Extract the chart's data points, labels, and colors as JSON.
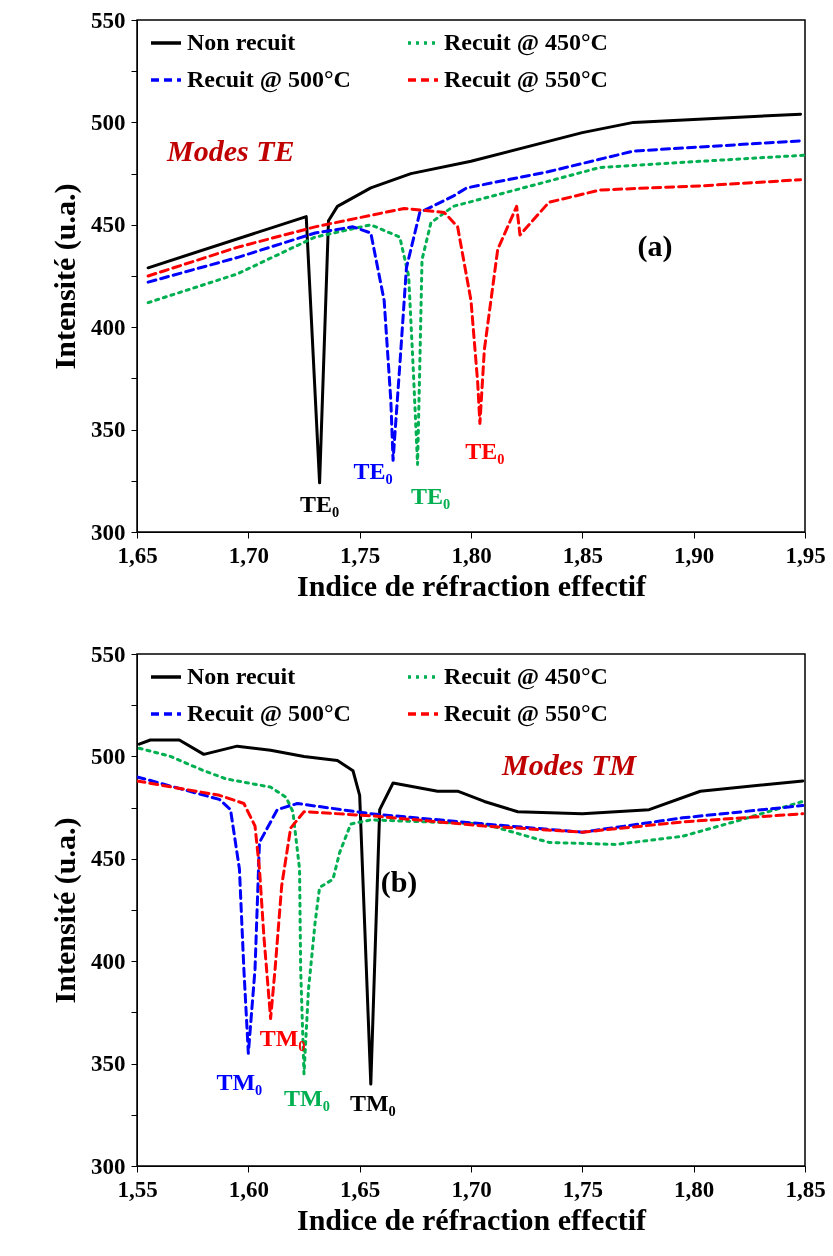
{
  "chart_data": [
    {
      "type": "line",
      "xlabel": "Indice de réfraction effectif",
      "ylabel": "Intensité (u.a.)",
      "legend": "top",
      "grid": false,
      "marker": "none",
      "xlim": [
        1.65,
        1.95
      ],
      "xticks": [
        {
          "value": 1.65,
          "label": "1,65"
        },
        {
          "value": 1.7,
          "label": "1,70"
        },
        {
          "value": 1.75,
          "label": "1,75"
        },
        {
          "value": 1.8,
          "label": "1,80"
        },
        {
          "value": 1.85,
          "label": "1,85"
        },
        {
          "value": 1.9,
          "label": "1,90"
        },
        {
          "value": 1.95,
          "label": "1,95"
        }
      ],
      "ylim": [
        300,
        550
      ],
      "yticks": [
        300,
        {
          "value": 325,
          "label": null
        },
        350,
        {
          "value": 375,
          "label": null
        },
        400,
        {
          "value": 425,
          "label": null
        },
        450,
        {
          "value": 475,
          "label": null
        },
        500,
        {
          "value": 525,
          "label": null
        },
        550
      ],
      "series": [
        {
          "name": "Non recuit",
          "color": "#000000",
          "line_style": "solid",
          "x": [
            1.655,
            1.726,
            1.732,
            1.736,
            1.74,
            1.755,
            1.773,
            1.8,
            1.85,
            1.873,
            1.948
          ],
          "values": [
            429,
            454,
            324,
            452,
            459,
            468,
            475,
            481,
            495,
            500,
            504
          ]
        },
        {
          "name": "Recuit @ 450°C",
          "color": "#00b050",
          "line_style": "dotted",
          "x": [
            1.655,
            1.695,
            1.73,
            1.755,
            1.768,
            1.772,
            1.774,
            1.776,
            1.777,
            1.778,
            1.782,
            1.792,
            1.813,
            1.858,
            1.903,
            1.95
          ],
          "values": [
            412,
            426,
            444,
            450,
            444,
            425,
            381,
            333,
            381,
            433,
            451,
            459,
            465,
            478,
            481,
            484
          ]
        },
        {
          "name": "Recuit @ 500°C",
          "color": "#0000ff",
          "line_style": "dashed",
          "x": [
            1.655,
            1.695,
            1.73,
            1.747,
            1.755,
            1.761,
            1.764,
            1.765,
            1.768,
            1.771,
            1.777,
            1.792,
            1.798,
            1.835,
            1.873,
            1.948
          ],
          "values": [
            422,
            434,
            446,
            449,
            446,
            413,
            364,
            335,
            381,
            429,
            456,
            464,
            468,
            476,
            486,
            491
          ]
        },
        {
          "name": "Recuit @ 550°C",
          "color": "#ff0000",
          "line_style": "dashed",
          "x": [
            1.655,
            1.695,
            1.73,
            1.77,
            1.788,
            1.794,
            1.8,
            1.803,
            1.804,
            1.806,
            1.812,
            1.8205,
            1.822,
            1.835,
            1.858,
            1.903,
            1.948
          ],
          "values": [
            425,
            439,
            449,
            458,
            456,
            449,
            413,
            373,
            353,
            389,
            438,
            459,
            445,
            461,
            467,
            469,
            472
          ]
        }
      ],
      "annotations": [
        "Modes TE",
        "(a)",
        {
          "text": "TE₀",
          "x": 1.732,
          "y": 324
        },
        {
          "text": "TE₀",
          "x": 1.765,
          "y": 335
        },
        {
          "text": "TE₀",
          "x": 1.776,
          "y": 333
        },
        {
          "text": "TE₀",
          "x": 1.804,
          "y": 353
        }
      ]
    },
    {
      "type": "line",
      "xlabel": "Indice de réfraction effectif",
      "ylabel": "Intensité (u.a.)",
      "legend": "top",
      "grid": false,
      "marker": "none",
      "xlim": [
        1.55,
        1.85
      ],
      "xticks": [
        {
          "value": 1.55,
          "label": "1,55"
        },
        {
          "value": 1.6,
          "label": "1,60"
        },
        {
          "value": 1.65,
          "label": "1,65"
        },
        {
          "value": 1.7,
          "label": "1,70"
        },
        {
          "value": 1.75,
          "label": "1,75"
        },
        {
          "value": 1.8,
          "label": "1,80"
        },
        {
          "value": 1.85,
          "label": "1,85"
        }
      ],
      "ylim": [
        300,
        550
      ],
      "yticks": [
        300,
        {
          "value": 325,
          "label": null
        },
        350,
        {
          "value": 375,
          "label": null
        },
        400,
        {
          "value": 425,
          "label": null
        },
        450,
        {
          "value": 475,
          "label": null
        },
        500,
        {
          "value": 525,
          "label": null
        },
        550
      ],
      "series": [
        {
          "name": "Non recuit",
          "color": "#000000",
          "line_style": "solid",
          "x": [
            1.551,
            1.556,
            1.569,
            1.58,
            1.595,
            1.61,
            1.625,
            1.64,
            1.647,
            1.65,
            1.655,
            1.659,
            1.665,
            1.685,
            1.694,
            1.706,
            1.721,
            1.75,
            1.78,
            1.803,
            1.849
          ],
          "values": [
            506,
            508,
            508,
            501,
            505,
            503,
            500,
            498,
            493,
            481,
            340,
            474,
            487,
            483,
            483,
            478,
            473,
            472,
            474,
            483,
            488
          ]
        },
        {
          "name": "Recuit @ 450°C",
          "color": "#00b050",
          "line_style": "dotted",
          "x": [
            1.551,
            1.565,
            1.58,
            1.59,
            1.595,
            1.61,
            1.617,
            1.62,
            1.623,
            1.6235,
            1.625,
            1.627,
            1.63,
            1.632,
            1.638,
            1.641,
            1.646,
            1.655,
            1.706,
            1.735,
            1.765,
            1.795,
            1.818,
            1.849
          ],
          "values": [
            504,
            500,
            493,
            489,
            488,
            485,
            480,
            473,
            445,
            396,
            345,
            386,
            419,
            436,
            440,
            453,
            467,
            469,
            467,
            458,
            457,
            461,
            468,
            478
          ]
        },
        {
          "name": "Recuit @ 500°C",
          "color": "#0000ff",
          "line_style": "dashed",
          "x": [
            1.55,
            1.587,
            1.592,
            1.596,
            1.598,
            1.6,
            1.603,
            1.605,
            1.613,
            1.622,
            1.655,
            1.706,
            1.75,
            1.795,
            1.849
          ],
          "values": [
            490,
            479,
            474,
            445,
            396,
            355,
            396,
            458,
            474,
            477,
            472,
            467,
            463,
            470,
            476
          ]
        },
        {
          "name": "Recuit @ 550°C",
          "color": "#ff0000",
          "line_style": "dashed",
          "x": [
            1.55,
            1.587,
            1.598,
            1.603,
            1.605,
            1.607,
            1.61,
            1.612,
            1.615,
            1.619,
            1.625,
            1.655,
            1.706,
            1.75,
            1.795,
            1.849
          ],
          "values": [
            488,
            481,
            477,
            466,
            445,
            412,
            372,
            396,
            437,
            465,
            473,
            471,
            466,
            463,
            468,
            472
          ]
        }
      ],
      "annotations": [
        "Modes TM",
        "(b)",
        {
          "text": "TM₀",
          "x": 1.6,
          "y": 355
        },
        {
          "text": "TM₀",
          "x": 1.61,
          "y": 372
        },
        {
          "text": "TM₀",
          "x": 1.625,
          "y": 345
        },
        {
          "text": "TM₀",
          "x": 1.655,
          "y": 340
        }
      ]
    }
  ]
}
